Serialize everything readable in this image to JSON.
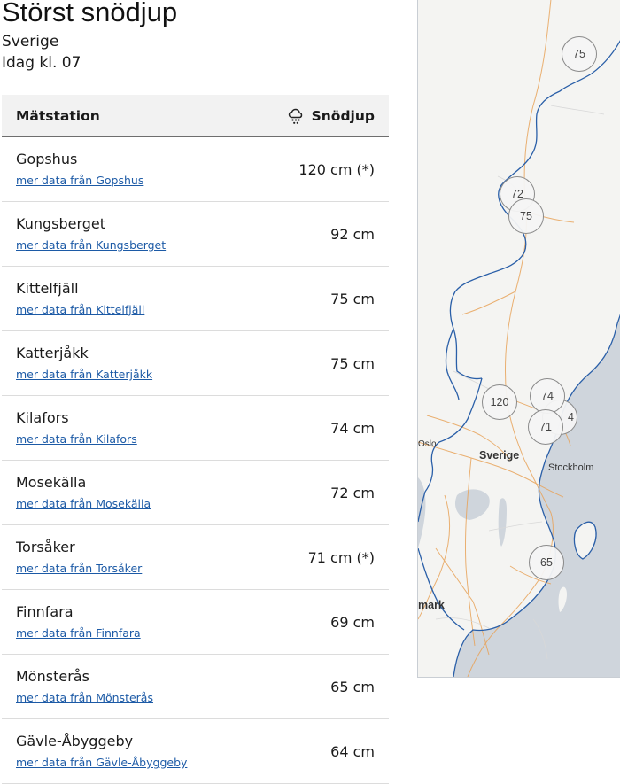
{
  "page": {
    "title": "Störst snödjup",
    "region": "Sverige",
    "time": "Idag kl. 07"
  },
  "table": {
    "col_station": "Mätstation",
    "col_value": "Snödjup",
    "value_icon": "snow-cloud-icon",
    "rows": [
      {
        "station": "Gopshus",
        "link": "mer data från Gopshus",
        "value": "120 cm (*)"
      },
      {
        "station": "Kungsberget",
        "link": "mer data från Kungsberget",
        "value": "92 cm"
      },
      {
        "station": "Kittelfjäll",
        "link": "mer data från Kittelfjäll",
        "value": "75 cm"
      },
      {
        "station": "Katterjåkk",
        "link": "mer data från Katterjåkk",
        "value": "75 cm"
      },
      {
        "station": "Kilafors",
        "link": "mer data från Kilafors",
        "value": "74 cm"
      },
      {
        "station": "Mosekälla",
        "link": "mer data från Mosekälla",
        "value": "72 cm"
      },
      {
        "station": "Torsåker",
        "link": "mer data från Torsåker",
        "value": "71 cm (*)"
      },
      {
        "station": "Finnfara",
        "link": "mer data från Finnfara",
        "value": "69 cm"
      },
      {
        "station": "Mönsterås",
        "link": "mer data från Mönsterås",
        "value": "65 cm"
      },
      {
        "station": "Gävle-Åbyggeby",
        "link": "mer data från Gävle-Åbyggeby",
        "value": "64 cm"
      }
    ]
  },
  "map": {
    "labels": {
      "country": "Sverige",
      "city": "Stockholm",
      "oslo": "Oslo",
      "denmark": "mark"
    },
    "markers": [
      "75",
      "72",
      "75",
      "120",
      "74",
      "4",
      "71",
      "65"
    ],
    "colors": {
      "land": "#f4f4f2",
      "water": "#cfd5dc",
      "border": "#2a5fa8",
      "road": "#e8a35a"
    }
  }
}
